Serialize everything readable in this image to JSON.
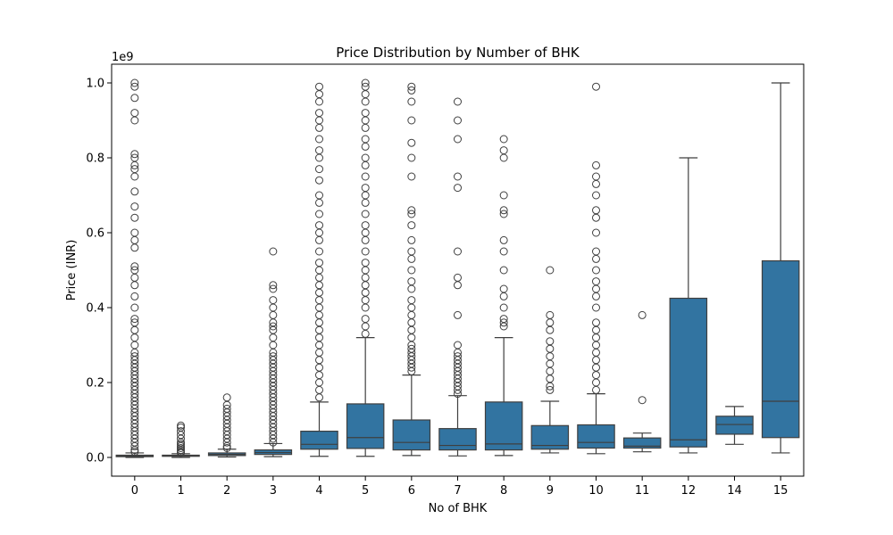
{
  "chart_data": {
    "type": "box",
    "title": "Price Distribution by Number of BHK",
    "xlabel": "No of BHK",
    "ylabel": "Price (INR)",
    "y_multiplier": "1e9",
    "ylim": [
      -0.05,
      1.05
    ],
    "yticks": [
      "0.0",
      "0.2",
      "0.4",
      "0.6",
      "0.8",
      "1.0"
    ],
    "box_color": "#3274a1",
    "line_color": "#3f3f3f",
    "categories": [
      "0",
      "1",
      "2",
      "3",
      "4",
      "5",
      "6",
      "7",
      "8",
      "9",
      "10",
      "11",
      "12",
      "14",
      "15"
    ],
    "boxes": [
      {
        "category": "0",
        "whislo": 0.0,
        "q1": 0.002,
        "med": 0.004,
        "q3": 0.006,
        "whishi": 0.012,
        "fliers": [
          0.015,
          0.02,
          0.03,
          0.04,
          0.05,
          0.06,
          0.07,
          0.08,
          0.09,
          0.1,
          0.11,
          0.12,
          0.13,
          0.14,
          0.15,
          0.16,
          0.17,
          0.18,
          0.19,
          0.2,
          0.21,
          0.22,
          0.23,
          0.24,
          0.25,
          0.26,
          0.27,
          0.28,
          0.3,
          0.32,
          0.34,
          0.36,
          0.37,
          0.4,
          0.43,
          0.46,
          0.48,
          0.5,
          0.51,
          0.56,
          0.58,
          0.6,
          0.64,
          0.67,
          0.71,
          0.75,
          0.77,
          0.78,
          0.8,
          0.81,
          0.9,
          0.92,
          0.96,
          0.99,
          1.0
        ]
      },
      {
        "category": "1",
        "whislo": 0.0,
        "q1": 0.003,
        "med": 0.004,
        "q3": 0.006,
        "whishi": 0.01,
        "fliers": [
          0.012,
          0.015,
          0.02,
          0.025,
          0.03,
          0.035,
          0.04,
          0.05,
          0.06,
          0.07,
          0.08,
          0.085
        ]
      },
      {
        "category": "2",
        "whislo": 0.001,
        "q1": 0.005,
        "med": 0.008,
        "q3": 0.012,
        "whishi": 0.022,
        "fliers": [
          0.025,
          0.03,
          0.04,
          0.05,
          0.06,
          0.07,
          0.08,
          0.09,
          0.1,
          0.11,
          0.12,
          0.13,
          0.14,
          0.16
        ]
      },
      {
        "category": "3",
        "whislo": 0.002,
        "q1": 0.008,
        "med": 0.013,
        "q3": 0.02,
        "whishi": 0.037,
        "fliers": [
          0.04,
          0.05,
          0.06,
          0.07,
          0.08,
          0.09,
          0.1,
          0.11,
          0.12,
          0.13,
          0.14,
          0.15,
          0.16,
          0.17,
          0.18,
          0.19,
          0.2,
          0.21,
          0.22,
          0.23,
          0.24,
          0.25,
          0.26,
          0.27,
          0.28,
          0.3,
          0.32,
          0.34,
          0.35,
          0.36,
          0.38,
          0.4,
          0.42,
          0.45,
          0.46,
          0.55
        ]
      },
      {
        "category": "4",
        "whislo": 0.003,
        "q1": 0.022,
        "med": 0.035,
        "q3": 0.07,
        "whishi": 0.148,
        "fliers": [
          0.16,
          0.18,
          0.2,
          0.22,
          0.24,
          0.26,
          0.28,
          0.3,
          0.32,
          0.34,
          0.36,
          0.38,
          0.4,
          0.42,
          0.44,
          0.46,
          0.48,
          0.5,
          0.52,
          0.55,
          0.58,
          0.6,
          0.62,
          0.65,
          0.68,
          0.7,
          0.74,
          0.77,
          0.8,
          0.82,
          0.85,
          0.88,
          0.9,
          0.92,
          0.95,
          0.97,
          0.99
        ]
      },
      {
        "category": "5",
        "whislo": 0.003,
        "q1": 0.024,
        "med": 0.053,
        "q3": 0.143,
        "whishi": 0.32,
        "fliers": [
          0.33,
          0.35,
          0.37,
          0.4,
          0.42,
          0.44,
          0.46,
          0.48,
          0.5,
          0.52,
          0.55,
          0.58,
          0.6,
          0.62,
          0.65,
          0.68,
          0.7,
          0.72,
          0.75,
          0.78,
          0.8,
          0.83,
          0.85,
          0.88,
          0.9,
          0.92,
          0.95,
          0.97,
          0.99,
          1.0
        ]
      },
      {
        "category": "6",
        "whislo": 0.005,
        "q1": 0.02,
        "med": 0.04,
        "q3": 0.1,
        "whishi": 0.22,
        "fliers": [
          0.23,
          0.24,
          0.25,
          0.26,
          0.27,
          0.28,
          0.29,
          0.3,
          0.32,
          0.34,
          0.36,
          0.38,
          0.4,
          0.42,
          0.45,
          0.47,
          0.5,
          0.53,
          0.55,
          0.58,
          0.62,
          0.65,
          0.66,
          0.75,
          0.8,
          0.84,
          0.9,
          0.95,
          0.98,
          0.99
        ]
      },
      {
        "category": "7",
        "whislo": 0.004,
        "q1": 0.02,
        "med": 0.032,
        "q3": 0.077,
        "whishi": 0.165,
        "fliers": [
          0.17,
          0.18,
          0.19,
          0.2,
          0.21,
          0.22,
          0.23,
          0.24,
          0.25,
          0.26,
          0.27,
          0.28,
          0.3,
          0.38,
          0.46,
          0.48,
          0.55,
          0.72,
          0.75,
          0.85,
          0.9,
          0.95
        ]
      },
      {
        "category": "8",
        "whislo": 0.005,
        "q1": 0.02,
        "med": 0.036,
        "q3": 0.148,
        "whishi": 0.32,
        "fliers": [
          0.35,
          0.36,
          0.37,
          0.4,
          0.43,
          0.45,
          0.5,
          0.55,
          0.58,
          0.65,
          0.66,
          0.7,
          0.8,
          0.82,
          0.85
        ]
      },
      {
        "category": "9",
        "whislo": 0.012,
        "q1": 0.022,
        "med": 0.032,
        "q3": 0.085,
        "whishi": 0.15,
        "fliers": [
          0.18,
          0.19,
          0.21,
          0.23,
          0.25,
          0.27,
          0.29,
          0.31,
          0.34,
          0.36,
          0.38,
          0.5
        ]
      },
      {
        "category": "10",
        "whislo": 0.01,
        "q1": 0.025,
        "med": 0.04,
        "q3": 0.087,
        "whishi": 0.17,
        "fliers": [
          0.18,
          0.2,
          0.22,
          0.24,
          0.26,
          0.28,
          0.3,
          0.32,
          0.34,
          0.36,
          0.4,
          0.43,
          0.45,
          0.47,
          0.5,
          0.53,
          0.55,
          0.6,
          0.64,
          0.66,
          0.7,
          0.73,
          0.75,
          0.78,
          0.99
        ]
      },
      {
        "category": "11",
        "whislo": 0.015,
        "q1": 0.025,
        "med": 0.03,
        "q3": 0.052,
        "whishi": 0.065,
        "fliers": [
          0.153,
          0.38
        ]
      },
      {
        "category": "12",
        "whislo": 0.012,
        "q1": 0.028,
        "med": 0.047,
        "q3": 0.425,
        "whishi": 0.8,
        "fliers": []
      },
      {
        "category": "14",
        "whislo": 0.035,
        "q1": 0.062,
        "med": 0.088,
        "q3": 0.11,
        "whishi": 0.136,
        "fliers": []
      },
      {
        "category": "15",
        "whislo": 0.012,
        "q1": 0.053,
        "med": 0.15,
        "q3": 0.525,
        "whishi": 1.0,
        "fliers": []
      }
    ]
  }
}
